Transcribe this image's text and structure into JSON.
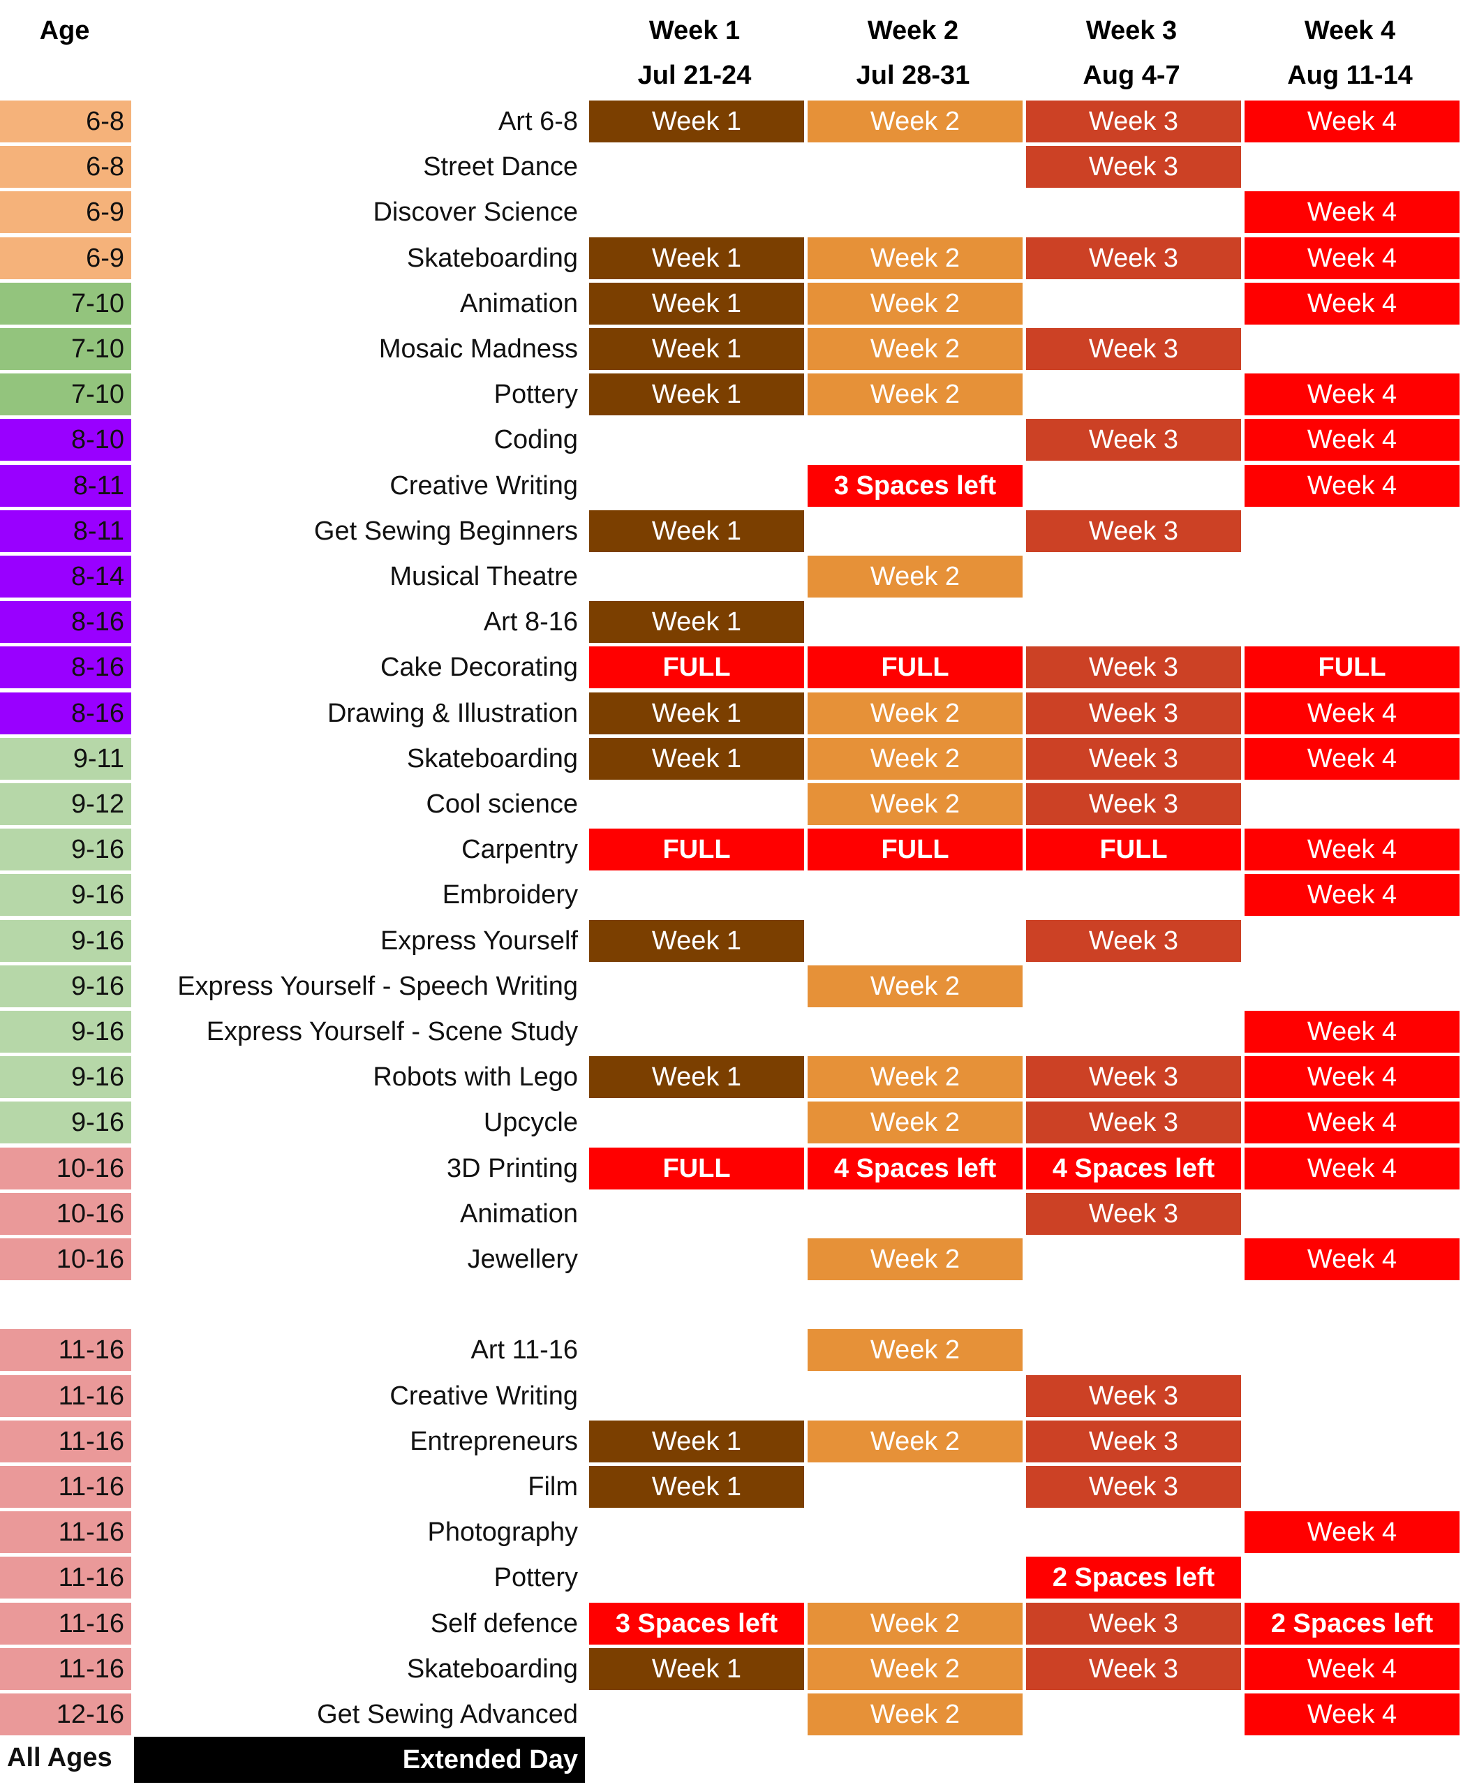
{
  "header": {
    "age_label": "Age",
    "weeks": [
      {
        "label": "Week 1",
        "dates": "Jul 21-24"
      },
      {
        "label": "Week 2",
        "dates": "Jul 28-31"
      },
      {
        "label": "Week 3",
        "dates": "Aug 4-7"
      },
      {
        "label": "Week 4",
        "dates": "Aug 11-14"
      }
    ]
  },
  "colors": {
    "age_groups": {
      "6-8": "#f5b27a",
      "6-9": "#f5b27a",
      "7-10": "#93c47d",
      "8-10": "#9900ff",
      "8-11": "#9900ff",
      "8-14": "#9900ff",
      "8-16": "#9900ff",
      "9-11": "#b6d7a8",
      "9-12": "#b6d7a8",
      "9-16": "#b6d7a8",
      "10-16": "#ea9999",
      "11-16": "#ea9999",
      "12-16": "#ea9999"
    },
    "week_sessions": [
      "#7b3f00",
      "#e69138",
      "#cc4125",
      "#ff0000"
    ],
    "status_full": "#ff0000",
    "status_spaces": "#ff0000",
    "footer_bar": "#000000"
  },
  "courses": [
    {
      "age": "6-8",
      "name": "Art 6-8",
      "weeks": [
        "Week 1",
        "Week 2",
        "Week 3",
        "Week 4"
      ]
    },
    {
      "age": "6-8",
      "name": "Street Dance",
      "weeks": [
        null,
        null,
        "Week 3",
        null
      ]
    },
    {
      "age": "6-9",
      "name": "Discover Science",
      "weeks": [
        null,
        null,
        null,
        "Week 4"
      ]
    },
    {
      "age": "6-9",
      "name": "Skateboarding",
      "weeks": [
        "Week 1",
        "Week 2",
        "Week 3",
        "Week 4"
      ]
    },
    {
      "age": "7-10",
      "name": "Animation",
      "weeks": [
        "Week 1",
        "Week 2",
        null,
        "Week 4"
      ]
    },
    {
      "age": "7-10",
      "name": "Mosaic Madness",
      "weeks": [
        "Week 1",
        "Week 2",
        "Week 3",
        null
      ]
    },
    {
      "age": "7-10",
      "name": "Pottery",
      "weeks": [
        "Week 1",
        "Week 2",
        null,
        "Week 4"
      ]
    },
    {
      "age": "8-10",
      "name": "Coding",
      "weeks": [
        null,
        null,
        "Week 3",
        "Week 4"
      ]
    },
    {
      "age": "8-11",
      "name": "Creative Writing",
      "weeks": [
        null,
        "3 Spaces left",
        null,
        "Week 4"
      ]
    },
    {
      "age": "8-11",
      "name": "Get Sewing Beginners",
      "weeks": [
        "Week 1",
        null,
        "Week 3",
        null
      ]
    },
    {
      "age": "8-14",
      "name": "Musical Theatre",
      "weeks": [
        null,
        "Week 2",
        null,
        null
      ]
    },
    {
      "age": "8-16",
      "name": "Art 8-16",
      "weeks": [
        "Week 1",
        null,
        null,
        null
      ]
    },
    {
      "age": "8-16",
      "name": "Cake Decorating",
      "weeks": [
        "FULL",
        "FULL",
        "Week 3",
        "FULL"
      ]
    },
    {
      "age": "8-16",
      "name": "Drawing & Illustration",
      "weeks": [
        "Week 1",
        "Week 2",
        "Week 3",
        "Week 4"
      ]
    },
    {
      "age": "9-11",
      "name": "Skateboarding",
      "weeks": [
        "Week 1",
        "Week 2",
        "Week 3",
        "Week 4"
      ]
    },
    {
      "age": "9-12",
      "name": "Cool science",
      "weeks": [
        null,
        "Week 2",
        "Week 3",
        null
      ]
    },
    {
      "age": "9-16",
      "name": "Carpentry",
      "weeks": [
        "FULL",
        "FULL",
        "FULL",
        "Week 4"
      ]
    },
    {
      "age": "9-16",
      "name": "Embroidery",
      "weeks": [
        null,
        null,
        null,
        "Week 4"
      ]
    },
    {
      "age": "9-16",
      "name": "Express Yourself",
      "weeks": [
        "Week 1",
        null,
        "Week 3",
        null
      ]
    },
    {
      "age": "9-16",
      "name": "Express Yourself - Speech Writing",
      "weeks": [
        null,
        "Week 2",
        null,
        null
      ]
    },
    {
      "age": "9-16",
      "name": "Express Yourself - Scene Study",
      "weeks": [
        null,
        null,
        null,
        "Week 4"
      ]
    },
    {
      "age": "9-16",
      "name": "Robots with Lego",
      "weeks": [
        "Week 1",
        "Week 2",
        "Week 3",
        "Week 4"
      ]
    },
    {
      "age": "9-16",
      "name": "Upcycle",
      "weeks": [
        null,
        "Week 2",
        "Week 3",
        "Week 4"
      ]
    },
    {
      "age": "10-16",
      "name": "3D Printing",
      "weeks": [
        "FULL",
        "4 Spaces left",
        "4 Spaces left",
        "Week 4"
      ]
    },
    {
      "age": "10-16",
      "name": "Animation",
      "weeks": [
        null,
        null,
        "Week 3",
        null
      ]
    },
    {
      "age": "10-16",
      "name": "Jewellery",
      "weeks": [
        null,
        "Week 2",
        null,
        "Week 4"
      ]
    },
    {
      "age": "11-16",
      "name": "Art 11-16",
      "weeks": [
        null,
        "Week 2",
        null,
        null
      ]
    },
    {
      "age": "11-16",
      "name": "Creative Writing",
      "weeks": [
        null,
        null,
        "Week 3",
        null
      ]
    },
    {
      "age": "11-16",
      "name": "Entrepreneurs",
      "weeks": [
        "Week 1",
        "Week 2",
        "Week 3",
        null
      ]
    },
    {
      "age": "11-16",
      "name": "Film",
      "weeks": [
        "Week 1",
        null,
        "Week 3",
        null
      ]
    },
    {
      "age": "11-16",
      "name": "Photography",
      "weeks": [
        null,
        null,
        null,
        "Week 4"
      ]
    },
    {
      "age": "11-16",
      "name": "Pottery",
      "weeks": [
        null,
        null,
        "2 Spaces left",
        null
      ]
    },
    {
      "age": "11-16",
      "name": "Self defence",
      "weeks": [
        "3 Spaces left",
        "Week 2",
        "Week 3",
        "2 Spaces left"
      ]
    },
    {
      "age": "11-16",
      "name": "Skateboarding",
      "weeks": [
        "Week 1",
        "Week 2",
        "Week 3",
        "Week 4"
      ]
    },
    {
      "age": "12-16",
      "name": "Get Sewing Advanced",
      "weeks": [
        null,
        "Week 2",
        null,
        "Week 4"
      ]
    }
  ],
  "footer": {
    "age_label": "All Ages",
    "course_label": "Extended Day"
  }
}
